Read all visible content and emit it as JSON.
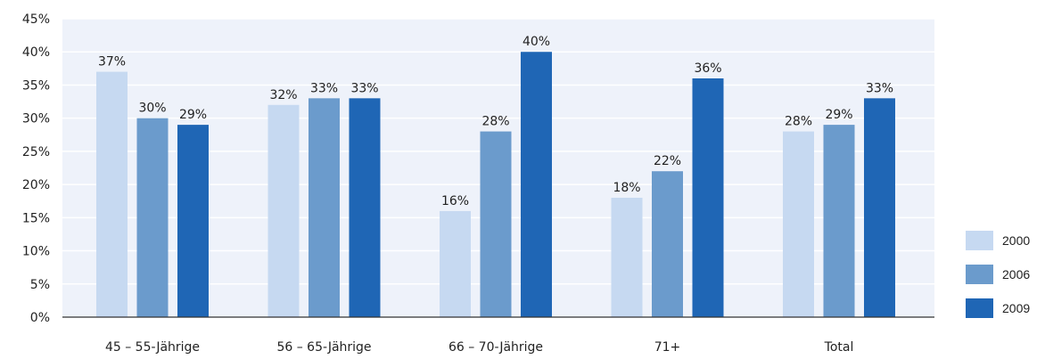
{
  "chart_data": {
    "type": "bar",
    "categories": [
      "45 – 55-Jährige",
      "56 – 65-Jährige",
      "66 – 70-Jährige",
      "71+",
      "Total"
    ],
    "series": [
      {
        "name": "2000",
        "values": [
          37,
          32,
          16,
          18,
          28
        ],
        "labels": [
          "37%",
          "32%",
          "16%",
          "18%",
          "28%"
        ],
        "color": "#c6d9f1"
      },
      {
        "name": "2006",
        "values": [
          30,
          33,
          28,
          22,
          29
        ],
        "labels": [
          "30%",
          "33%",
          "28%",
          "22%",
          "29%"
        ],
        "color": "#6b9bcc"
      },
      {
        "name": "2009",
        "values": [
          29,
          33,
          40,
          36,
          33
        ],
        "labels": [
          "29%",
          "33%",
          "40%",
          "36%",
          "33%"
        ],
        "color": "#1f66b5"
      }
    ],
    "ylim": [
      0,
      45
    ],
    "yticks": [
      "0%",
      "5%",
      "10%",
      "15%",
      "20%",
      "25%",
      "30%",
      "35%",
      "40%",
      "45%"
    ],
    "grid": true,
    "legend_position": "bottom-right",
    "plot_background": "#eef2fa",
    "grid_color": "#ffffff",
    "axis_color": "#333333"
  }
}
